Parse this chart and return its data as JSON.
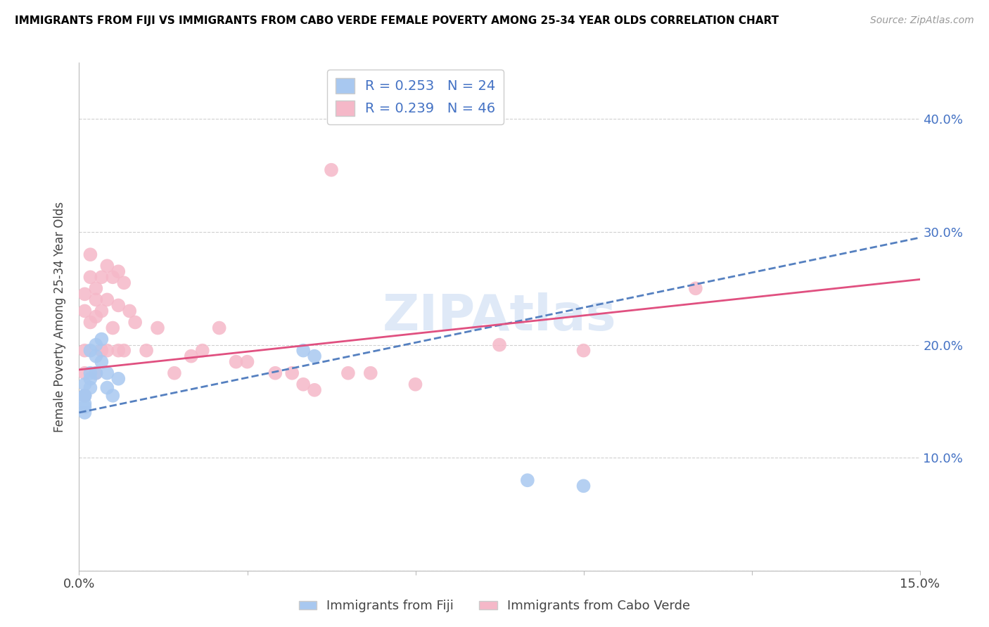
{
  "title": "IMMIGRANTS FROM FIJI VS IMMIGRANTS FROM CABO VERDE FEMALE POVERTY AMONG 25-34 YEAR OLDS CORRELATION CHART",
  "source": "Source: ZipAtlas.com",
  "ylabel": "Female Poverty Among 25-34 Year Olds",
  "xlim": [
    0.0,
    0.15
  ],
  "ylim": [
    0.0,
    0.45
  ],
  "fiji_color": "#a8c8f0",
  "cabo_verde_color": "#f5b8c8",
  "fiji_line_color": "#5580c0",
  "cabo_verde_line_color": "#e05080",
  "fiji_r": 0.253,
  "fiji_n": 24,
  "cabo_verde_r": 0.239,
  "cabo_verde_n": 46,
  "legend_fiji_label": "Immigrants from Fiji",
  "legend_cabo_verde_label": "Immigrants from Cabo Verde",
  "fiji_x": [
    0.001,
    0.001,
    0.001,
    0.001,
    0.001,
    0.001,
    0.001,
    0.002,
    0.002,
    0.002,
    0.002,
    0.003,
    0.003,
    0.003,
    0.004,
    0.004,
    0.005,
    0.005,
    0.006,
    0.007,
    0.04,
    0.042,
    0.08,
    0.09
  ],
  "fiji_y": [
    0.155,
    0.145,
    0.165,
    0.155,
    0.155,
    0.148,
    0.14,
    0.175,
    0.195,
    0.17,
    0.162,
    0.2,
    0.19,
    0.175,
    0.185,
    0.205,
    0.175,
    0.162,
    0.155,
    0.17,
    0.195,
    0.19,
    0.08,
    0.075
  ],
  "cabo_verde_x": [
    0.001,
    0.001,
    0.001,
    0.001,
    0.001,
    0.002,
    0.002,
    0.002,
    0.003,
    0.003,
    0.003,
    0.003,
    0.004,
    0.004,
    0.004,
    0.005,
    0.005,
    0.005,
    0.006,
    0.006,
    0.007,
    0.007,
    0.007,
    0.008,
    0.008,
    0.009,
    0.01,
    0.012,
    0.014,
    0.017,
    0.02,
    0.022,
    0.025,
    0.028,
    0.03,
    0.035,
    0.038,
    0.04,
    0.042,
    0.045,
    0.048,
    0.052,
    0.06,
    0.075,
    0.09,
    0.11
  ],
  "cabo_verde_y": [
    0.23,
    0.175,
    0.245,
    0.195,
    0.155,
    0.28,
    0.26,
    0.22,
    0.25,
    0.24,
    0.225,
    0.175,
    0.26,
    0.23,
    0.195,
    0.27,
    0.24,
    0.195,
    0.26,
    0.215,
    0.265,
    0.235,
    0.195,
    0.255,
    0.195,
    0.23,
    0.22,
    0.195,
    0.215,
    0.175,
    0.19,
    0.195,
    0.215,
    0.185,
    0.185,
    0.175,
    0.175,
    0.165,
    0.16,
    0.355,
    0.175,
    0.175,
    0.165,
    0.2,
    0.195,
    0.25
  ],
  "fiji_line_x0": 0.0,
  "fiji_line_y0": 0.14,
  "fiji_line_x1": 0.15,
  "fiji_line_y1": 0.295,
  "cabo_line_x0": 0.0,
  "cabo_line_y0": 0.178,
  "cabo_line_x1": 0.15,
  "cabo_line_y1": 0.258
}
